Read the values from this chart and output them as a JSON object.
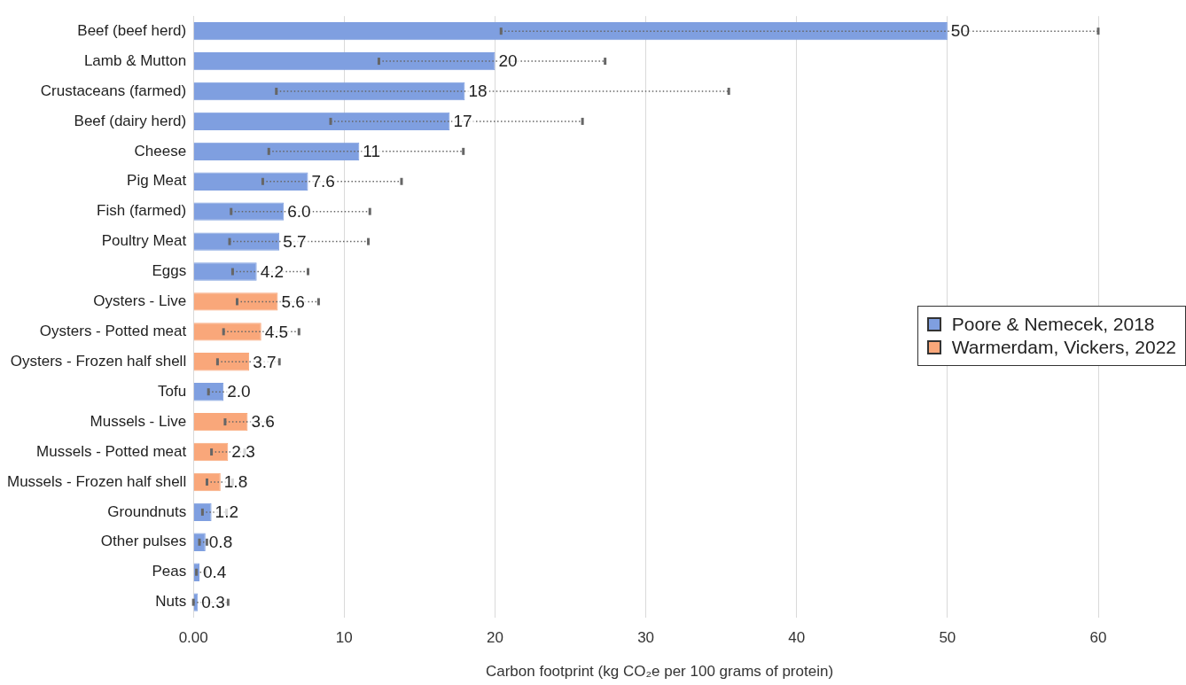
{
  "chart_data": {
    "type": "bar",
    "orientation": "horizontal",
    "xlabel": "Carbon footprint (kg CO₂e per 100 grams of protein)",
    "categories": [
      "Beef (beef herd)",
      "Lamb & Mutton",
      "Crustaceans (farmed)",
      "Beef (dairy herd)",
      "Cheese",
      "Pig Meat",
      "Fish (farmed)",
      "Poultry Meat",
      "Eggs",
      "Oysters - Live",
      "Oysters - Potted meat",
      "Oysters - Frozen half shell",
      "Tofu",
      "Mussels - Live",
      "Mussels - Potted meat",
      "Mussels - Frozen half shell",
      "Groundnuts",
      "Other pulses",
      "Peas",
      "Nuts"
    ],
    "series": [
      {
        "name": "Poore & Nemecek, 2018",
        "color": "#7f9fe0",
        "values": [
          50,
          20,
          18,
          17,
          11,
          7.6,
          6.0,
          5.7,
          4.2,
          null,
          null,
          null,
          2.0,
          null,
          null,
          null,
          1.2,
          0.8,
          0.4,
          0.3
        ],
        "value_labels": [
          "50",
          "20",
          "18",
          "17",
          "11",
          "7.6",
          "6.0",
          "5.7",
          "4.2",
          null,
          null,
          null,
          "2.0",
          null,
          null,
          null,
          "1.2",
          "0.8",
          "0.4",
          "0.3"
        ],
        "errors": [
          [
            20.4,
            60
          ],
          [
            12.3,
            27.3
          ],
          [
            5.5,
            35.5
          ],
          [
            9.1,
            25.8
          ],
          [
            5.0,
            17.9
          ],
          [
            4.6,
            13.8
          ],
          [
            2.5,
            11.7
          ],
          [
            2.4,
            11.6
          ],
          [
            2.6,
            7.6
          ],
          null,
          null,
          null,
          [
            1.0,
            2.7
          ],
          null,
          null,
          null,
          [
            0.6,
            2.2
          ],
          [
            0.4,
            0.9
          ],
          [
            0.2,
            0.8
          ],
          [
            0,
            2.3
          ]
        ]
      },
      {
        "name": "Warmerdam, Vickers, 2022",
        "color": "#f9a77a",
        "values": [
          null,
          null,
          null,
          null,
          null,
          null,
          null,
          null,
          null,
          5.6,
          4.5,
          3.7,
          null,
          3.6,
          2.3,
          1.8,
          null,
          null,
          null,
          null
        ],
        "value_labels": [
          null,
          null,
          null,
          null,
          null,
          null,
          null,
          null,
          null,
          "5.6",
          "4.5",
          "3.7",
          null,
          "3.6",
          "2.3",
          "1.8",
          null,
          null,
          null,
          null
        ],
        "errors": [
          null,
          null,
          null,
          null,
          null,
          null,
          null,
          null,
          null,
          [
            2.9,
            8.3
          ],
          [
            2.0,
            7.0
          ],
          [
            1.6,
            5.7
          ],
          null,
          [
            2.1,
            5.0
          ],
          [
            1.2,
            3.4
          ],
          [
            0.9,
            2.6
          ],
          null,
          null,
          null,
          null
        ]
      }
    ],
    "xlim": [
      0,
      60
    ],
    "xticks": [
      {
        "value": 0,
        "label": "0.00"
      },
      10,
      20,
      30,
      40,
      50,
      60
    ],
    "grid": "x",
    "legend": "right"
  }
}
